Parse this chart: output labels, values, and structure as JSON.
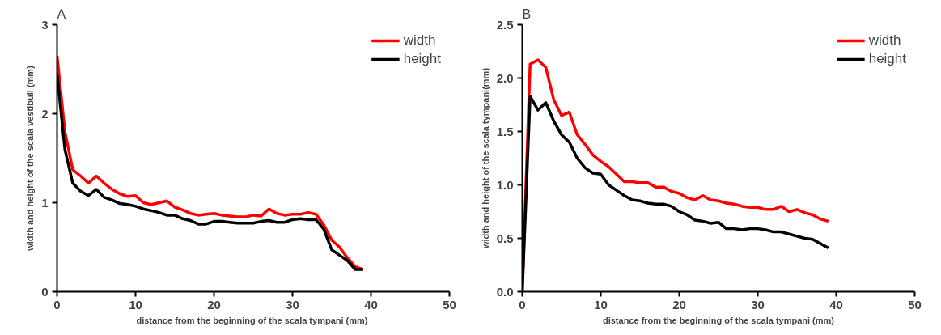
{
  "chart_data": [
    {
      "type": "line",
      "title": "A",
      "xlabel": "distance from the beginning of the scala  tympani (mm)",
      "ylabel": "width and height of the scala vestibuli (mm)",
      "x": [
        0,
        1,
        2,
        3,
        4,
        5,
        6,
        7,
        8,
        9,
        10,
        11,
        12,
        13,
        14,
        15,
        16,
        17,
        18,
        19,
        20,
        21,
        22,
        23,
        24,
        25,
        26,
        27,
        28,
        29,
        30,
        31,
        32,
        33,
        34,
        35,
        36,
        37,
        38,
        39
      ],
      "series": [
        {
          "name": "width",
          "color": "#ff0000",
          "values": [
            2.65,
            1.8,
            1.37,
            1.3,
            1.22,
            1.3,
            1.22,
            1.15,
            1.1,
            1.07,
            1.08,
            1.0,
            0.98,
            1.0,
            1.02,
            0.95,
            0.92,
            0.88,
            0.86,
            0.87,
            0.88,
            0.86,
            0.85,
            0.84,
            0.84,
            0.86,
            0.85,
            0.93,
            0.88,
            0.86,
            0.87,
            0.87,
            0.89,
            0.87,
            0.75,
            0.58,
            0.5,
            0.38,
            0.28,
            0.25
          ]
        },
        {
          "name": "height",
          "color": "#000000",
          "values": [
            2.45,
            1.6,
            1.22,
            1.13,
            1.08,
            1.15,
            1.06,
            1.03,
            0.99,
            0.98,
            0.96,
            0.93,
            0.91,
            0.89,
            0.86,
            0.86,
            0.82,
            0.8,
            0.76,
            0.76,
            0.79,
            0.79,
            0.78,
            0.77,
            0.77,
            0.77,
            0.79,
            0.8,
            0.78,
            0.78,
            0.81,
            0.82,
            0.81,
            0.81,
            0.7,
            0.47,
            0.41,
            0.35,
            0.25,
            0.25
          ]
        }
      ],
      "xlim": [
        0,
        50
      ],
      "xticks": [
        0,
        10,
        20,
        30,
        40,
        50
      ],
      "ylim": [
        0,
        3
      ],
      "yticks": [
        0,
        1,
        2,
        3
      ],
      "grid": false,
      "legend": "top right",
      "line_style": "solid"
    },
    {
      "type": "line",
      "title": "B",
      "xlabel": "distance from the beginning of the scala tympani (mm)",
      "ylabel": "width and height of the scala tympani(mm)",
      "x": [
        0,
        1,
        2,
        3,
        4,
        5,
        6,
        7,
        8,
        9,
        10,
        11,
        12,
        13,
        14,
        15,
        16,
        17,
        18,
        19,
        20,
        21,
        22,
        23,
        24,
        25,
        26,
        27,
        28,
        29,
        30,
        31,
        32,
        33,
        34,
        35,
        36,
        37,
        38,
        39
      ],
      "series": [
        {
          "name": "width",
          "color": "#ff0000",
          "values": [
            0,
            2.13,
            2.17,
            2.1,
            1.8,
            1.65,
            1.68,
            1.47,
            1.38,
            1.28,
            1.22,
            1.17,
            1.1,
            1.03,
            1.03,
            1.02,
            1.02,
            0.98,
            0.98,
            0.94,
            0.92,
            0.88,
            0.86,
            0.9,
            0.86,
            0.85,
            0.83,
            0.82,
            0.8,
            0.79,
            0.79,
            0.77,
            0.77,
            0.8,
            0.75,
            0.77,
            0.74,
            0.72,
            0.68,
            0.66
          ]
        },
        {
          "name": "height",
          "color": "#000000",
          "values": [
            0,
            1.83,
            1.7,
            1.77,
            1.6,
            1.47,
            1.4,
            1.25,
            1.16,
            1.11,
            1.1,
            1.0,
            0.95,
            0.9,
            0.86,
            0.85,
            0.83,
            0.82,
            0.82,
            0.8,
            0.75,
            0.72,
            0.67,
            0.66,
            0.64,
            0.65,
            0.59,
            0.59,
            0.58,
            0.59,
            0.59,
            0.58,
            0.56,
            0.56,
            0.54,
            0.52,
            0.5,
            0.49,
            0.45,
            0.41
          ]
        }
      ],
      "xlim": [
        0,
        50
      ],
      "xticks": [
        0,
        10,
        20,
        30,
        40,
        50
      ],
      "ylim": [
        0,
        2.5
      ],
      "yticks": [
        {
          "value": 0,
          "label": "0.0"
        },
        {
          "value": 0.5,
          "label": "0.5"
        },
        {
          "value": 1,
          "label": "1.0"
        },
        {
          "value": 1.5,
          "label": "1.5"
        },
        {
          "value": 2,
          "label": "2.0"
        },
        {
          "value": 2.5,
          "label": "2.5"
        }
      ],
      "grid": false,
      "legend": "top right",
      "line_style": "solid"
    }
  ]
}
